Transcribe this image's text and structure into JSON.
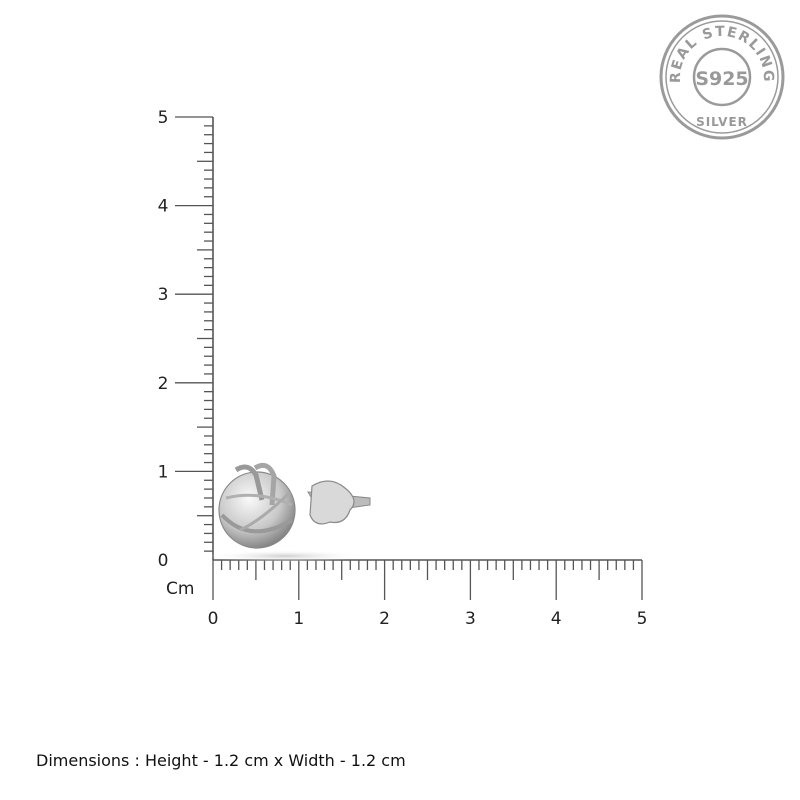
{
  "ruler": {
    "unit_label": "Cm",
    "vertical_labels": [
      "0",
      "1",
      "2",
      "3",
      "4",
      "5"
    ],
    "horizontal_labels": [
      "0",
      "1",
      "2",
      "3",
      "4",
      "5"
    ],
    "ticks_per_unit": 10,
    "color": "#555555"
  },
  "product": {
    "name_icon": "knot-stud-earring-image",
    "height_cm": 1.2,
    "width_cm": 1.2
  },
  "seal": {
    "top_text": "REAL STERLING",
    "center_text": "S925",
    "bottom_text": "SILVER",
    "color": "#9a9a9a"
  },
  "caption": "Dimensions : Height - 1.2 cm x Width - 1.2 cm"
}
